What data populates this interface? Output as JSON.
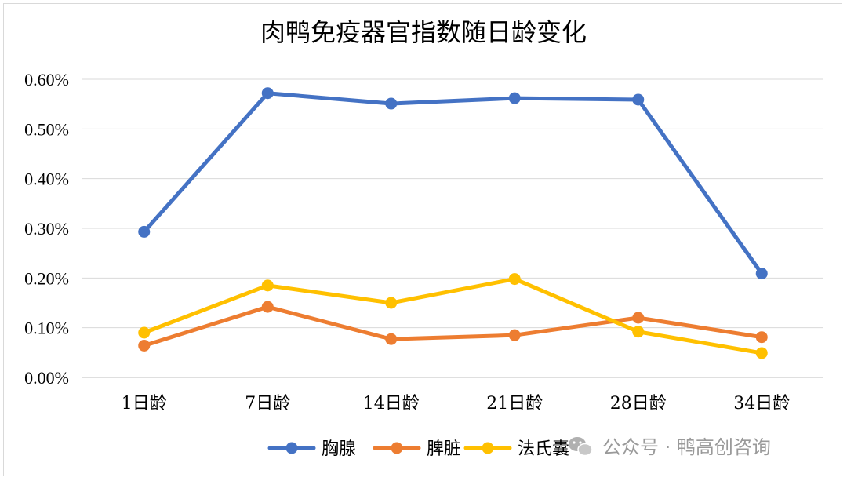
{
  "chart_data": {
    "type": "line",
    "title": "肉鸭免疫器官指数随日龄变化",
    "categories": [
      "1日龄",
      "7日龄",
      "14日龄",
      "21日龄",
      "28日龄",
      "34日龄"
    ],
    "ylim": [
      0,
      0.006
    ],
    "yticks": [
      "0.00%",
      "0.10%",
      "0.20%",
      "0.30%",
      "0.40%",
      "0.50%",
      "0.60%"
    ],
    "grid": true,
    "legend_position": "bottom",
    "series": [
      {
        "name": "胸腺",
        "color": "#4472C4",
        "values": [
          0.00293,
          0.00572,
          0.00551,
          0.00562,
          0.00559,
          0.00209
        ]
      },
      {
        "name": "脾脏",
        "color": "#ED7D31",
        "values": [
          0.00064,
          0.00142,
          0.00077,
          0.00085,
          0.0012,
          0.00081
        ]
      },
      {
        "name": "法氏囊",
        "color": "#FFC000",
        "values": [
          0.0009,
          0.00185,
          0.0015,
          0.00198,
          0.00092,
          0.00049
        ]
      }
    ]
  },
  "watermark": {
    "text": "公众号 · 鸭高创咨询",
    "icon": "wechat-icon"
  }
}
